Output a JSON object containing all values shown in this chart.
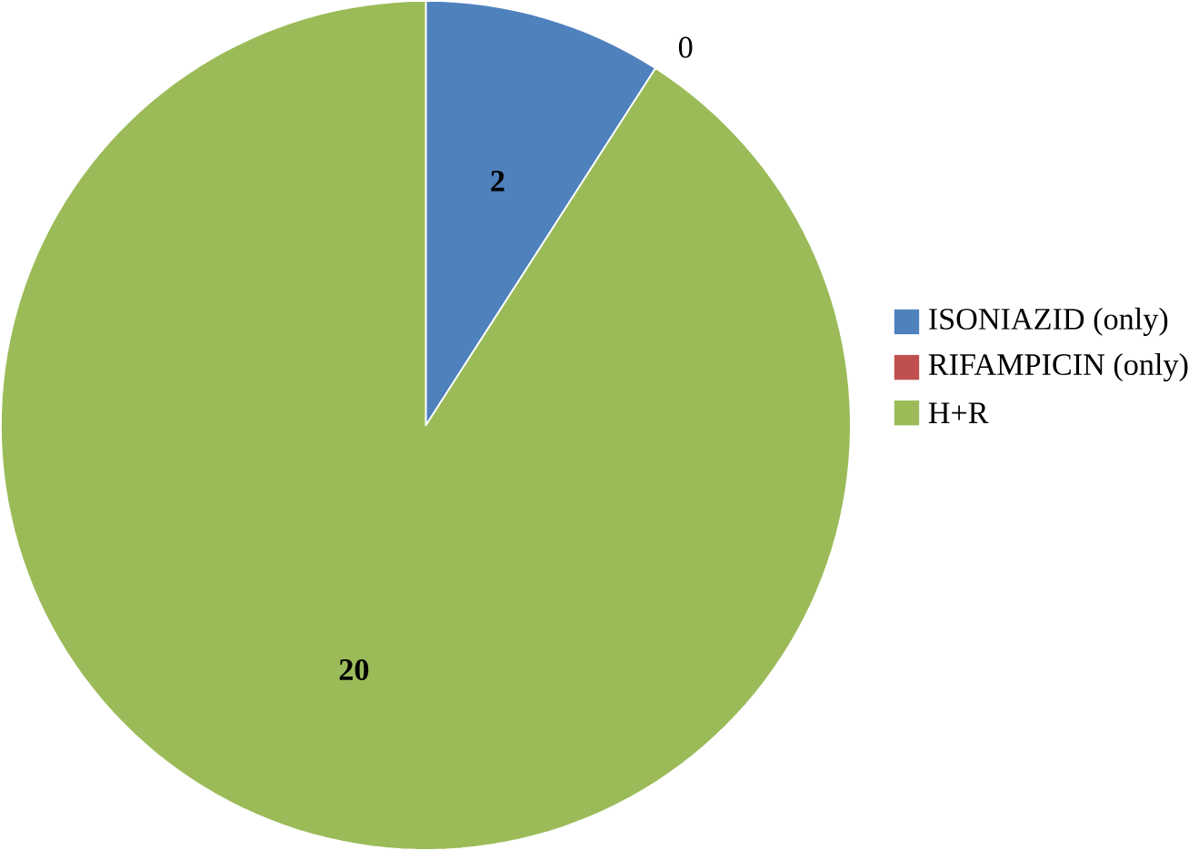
{
  "chart_data": {
    "type": "pie",
    "categories": [
      "ISONIAZID (only)",
      "RIFAMPICIN (only)",
      "H+R"
    ],
    "values": [
      2,
      0,
      20
    ],
    "colors": [
      "#4f81bd",
      "#c0504d",
      "#9bbb59"
    ],
    "value_labels": [
      "2",
      "0",
      "20"
    ],
    "legend": "right"
  }
}
